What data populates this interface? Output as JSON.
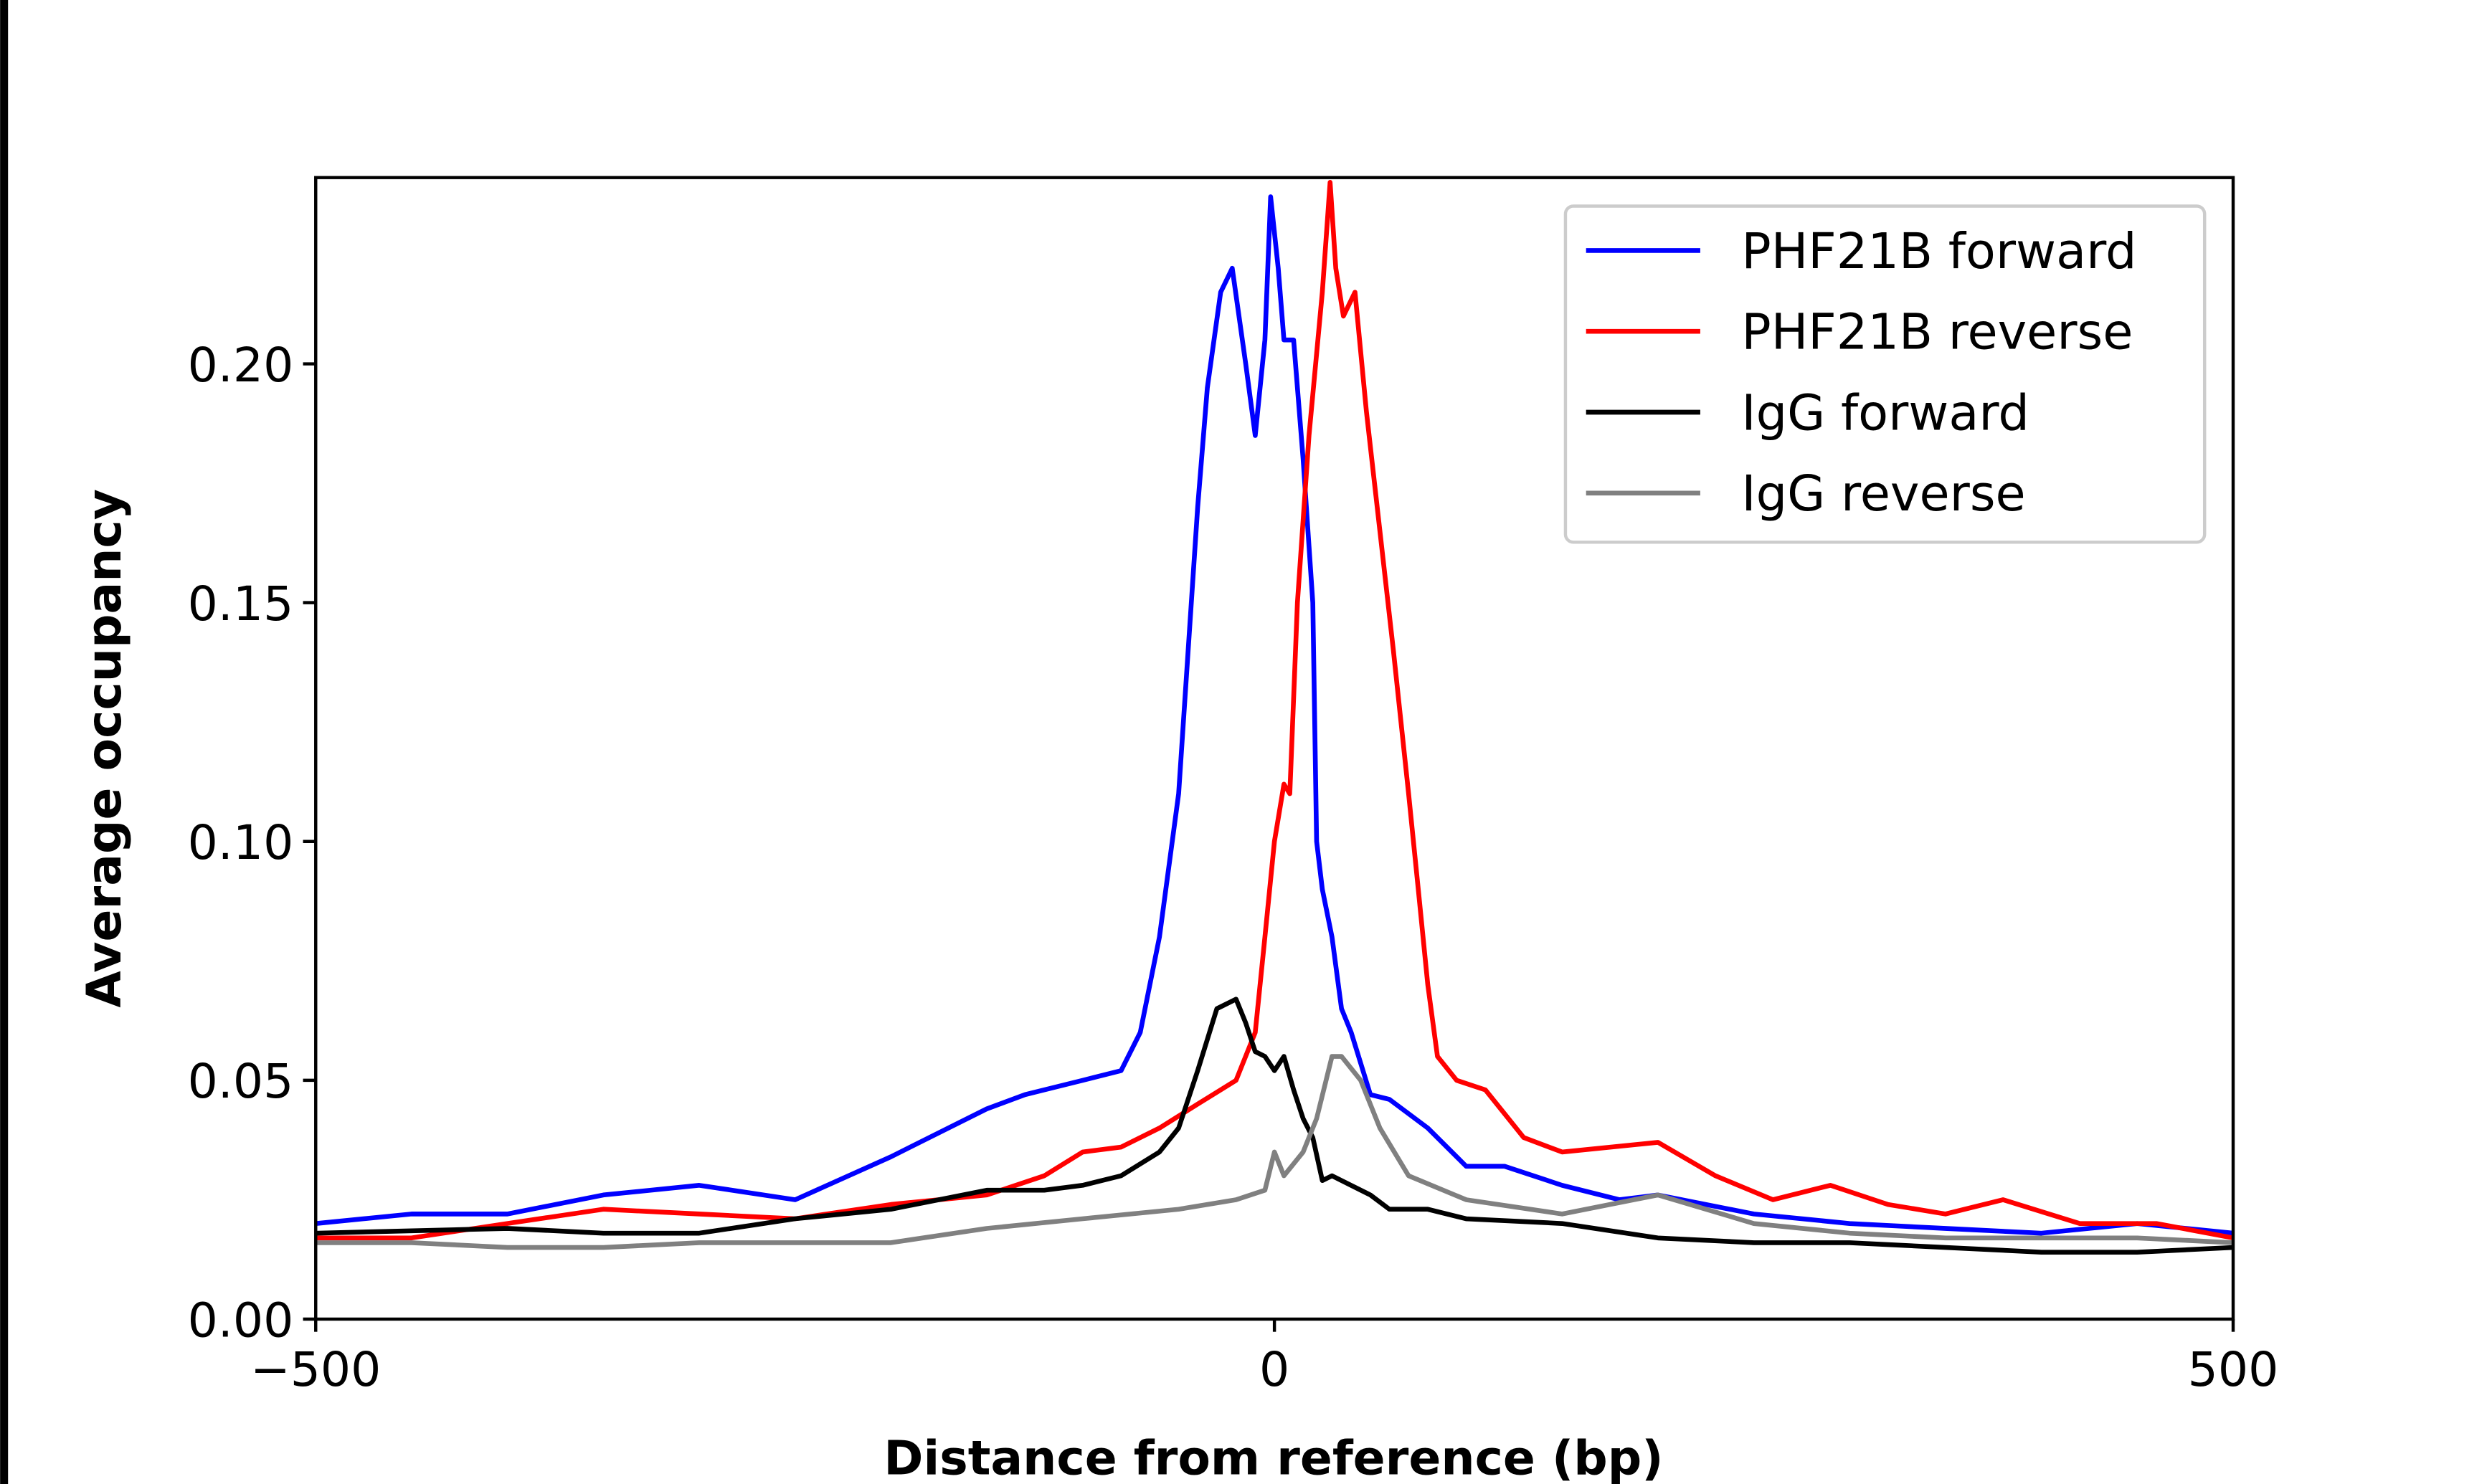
{
  "chart_data": {
    "type": "line",
    "title": "",
    "xlabel": "Distance from reference (bp)",
    "ylabel": "Average occupancy",
    "xlim": [
      -500,
      500
    ],
    "ylim": [
      0,
      0.239
    ],
    "xticks": [
      {
        "value": -500,
        "label": "−500"
      },
      {
        "value": 0,
        "label": "0"
      },
      {
        "value": 500,
        "label": "500"
      }
    ],
    "yticks": [
      {
        "value": 0,
        "label": "0.00"
      },
      {
        "value": 0.05,
        "label": "0.05"
      },
      {
        "value": 0.1,
        "label": "0.10"
      },
      {
        "value": 0.15,
        "label": "0.15"
      },
      {
        "value": 0.2,
        "label": "0.20"
      }
    ],
    "grid": false,
    "legend_position": "top-right",
    "series": [
      {
        "name": "PHF21B forward",
        "color": "#0000ff",
        "x": [
          -500,
          -450,
          -400,
          -350,
          -300,
          -250,
          -200,
          -150,
          -130,
          -100,
          -80,
          -70,
          -60,
          -50,
          -45,
          -40,
          -35,
          -28,
          -22,
          -15,
          -10,
          -5,
          -2,
          2,
          5,
          10,
          15,
          20,
          22,
          25,
          30,
          35,
          40,
          50,
          60,
          80,
          100,
          120,
          150,
          180,
          200,
          250,
          300,
          350,
          400,
          450,
          500
        ],
        "y": [
          0.02,
          0.022,
          0.022,
          0.026,
          0.028,
          0.025,
          0.034,
          0.044,
          0.047,
          0.05,
          0.052,
          0.06,
          0.08,
          0.11,
          0.14,
          0.17,
          0.195,
          0.215,
          0.22,
          0.2,
          0.185,
          0.205,
          0.235,
          0.22,
          0.205,
          0.205,
          0.18,
          0.15,
          0.1,
          0.09,
          0.08,
          0.065,
          0.06,
          0.047,
          0.046,
          0.04,
          0.032,
          0.032,
          0.028,
          0.025,
          0.026,
          0.022,
          0.02,
          0.019,
          0.018,
          0.02,
          0.018
        ]
      },
      {
        "name": "PHF21B reverse",
        "color": "#ff0000",
        "x": [
          -500,
          -450,
          -400,
          -350,
          -300,
          -250,
          -200,
          -150,
          -120,
          -100,
          -80,
          -60,
          -40,
          -20,
          -10,
          -5,
          0,
          5,
          8,
          12,
          18,
          25,
          29,
          32,
          36,
          42,
          48,
          55,
          62,
          70,
          75,
          80,
          85,
          95,
          110,
          130,
          150,
          200,
          230,
          260,
          290,
          320,
          350,
          380,
          420,
          460,
          500
        ],
        "y": [
          0.017,
          0.017,
          0.02,
          0.023,
          0.022,
          0.021,
          0.024,
          0.026,
          0.03,
          0.035,
          0.036,
          0.04,
          0.045,
          0.05,
          0.06,
          0.08,
          0.1,
          0.112,
          0.11,
          0.15,
          0.185,
          0.215,
          0.238,
          0.22,
          0.21,
          0.215,
          0.19,
          0.165,
          0.14,
          0.11,
          0.09,
          0.07,
          0.055,
          0.05,
          0.048,
          0.038,
          0.035,
          0.037,
          0.03,
          0.025,
          0.028,
          0.024,
          0.022,
          0.025,
          0.02,
          0.02,
          0.017
        ]
      },
      {
        "name": "IgG forward",
        "color": "#000000",
        "x": [
          -500,
          -400,
          -350,
          -300,
          -250,
          -200,
          -150,
          -120,
          -100,
          -80,
          -60,
          -50,
          -40,
          -30,
          -20,
          -15,
          -10,
          -5,
          0,
          5,
          10,
          15,
          20,
          25,
          30,
          50,
          60,
          80,
          100,
          150,
          200,
          250,
          300,
          350,
          400,
          450,
          500
        ],
        "y": [
          0.018,
          0.019,
          0.018,
          0.018,
          0.021,
          0.023,
          0.027,
          0.027,
          0.028,
          0.03,
          0.035,
          0.04,
          0.052,
          0.065,
          0.067,
          0.062,
          0.056,
          0.055,
          0.052,
          0.055,
          0.048,
          0.042,
          0.038,
          0.029,
          0.03,
          0.026,
          0.023,
          0.023,
          0.021,
          0.02,
          0.017,
          0.016,
          0.016,
          0.015,
          0.014,
          0.014,
          0.015
        ]
      },
      {
        "name": "IgG reverse",
        "color": "#808080",
        "x": [
          -500,
          -450,
          -400,
          -350,
          -300,
          -250,
          -200,
          -150,
          -100,
          -50,
          -20,
          -5,
          0,
          5,
          15,
          22,
          30,
          35,
          45,
          55,
          70,
          100,
          150,
          200,
          250,
          300,
          350,
          400,
          450,
          500
        ],
        "y": [
          0.016,
          0.016,
          0.015,
          0.015,
          0.016,
          0.016,
          0.016,
          0.019,
          0.021,
          0.023,
          0.025,
          0.027,
          0.035,
          0.03,
          0.035,
          0.042,
          0.055,
          0.055,
          0.05,
          0.04,
          0.03,
          0.025,
          0.022,
          0.026,
          0.02,
          0.018,
          0.017,
          0.017,
          0.017,
          0.016
        ]
      }
    ]
  }
}
